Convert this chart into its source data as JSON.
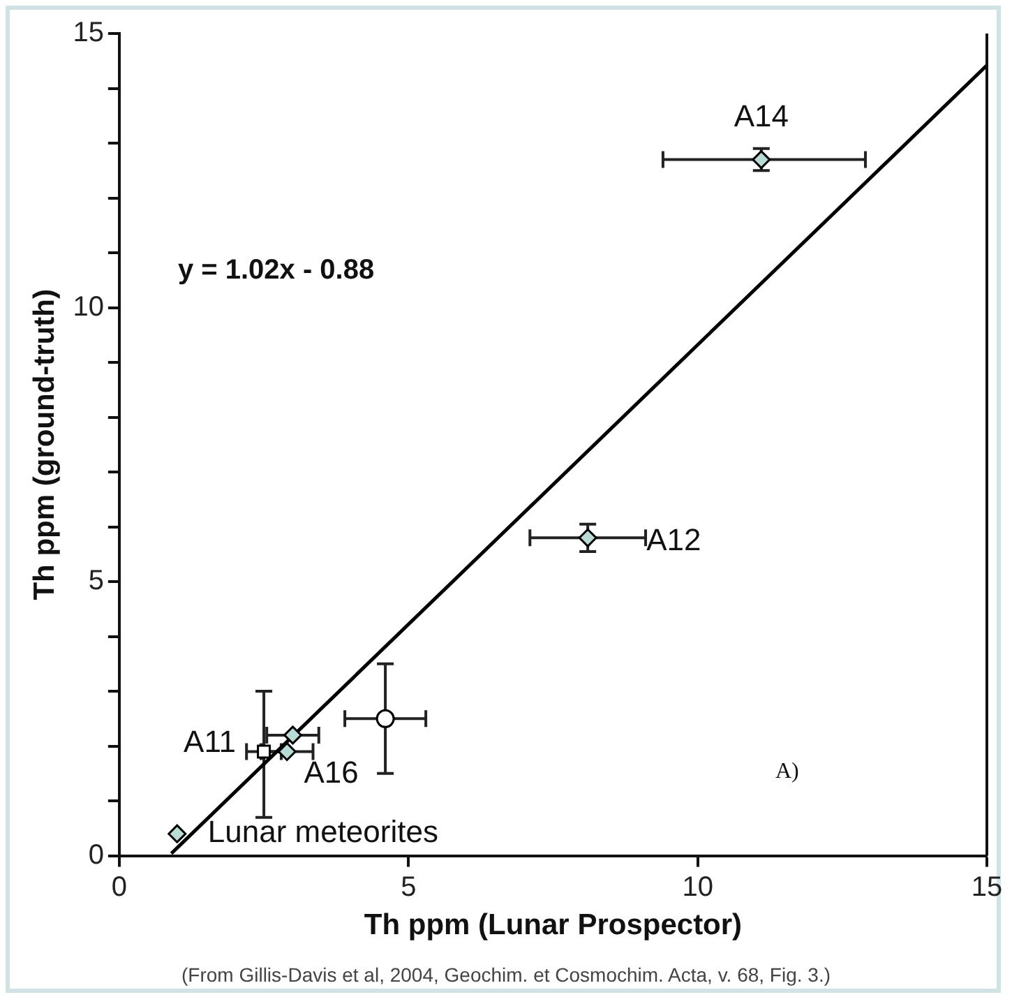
{
  "chart_data": {
    "type": "scatter",
    "xlabel": "Th ppm (Lunar Prospector)",
    "ylabel": "Th ppm (ground-truth)",
    "xlim": [
      0,
      15
    ],
    "ylim": [
      0,
      15
    ],
    "xticks": [
      0,
      5,
      10,
      15
    ],
    "yticks": [
      0,
      {
        "value": 1,
        "label": null
      },
      {
        "value": 2,
        "label": null
      },
      {
        "value": 3,
        "label": null
      },
      {
        "value": 4,
        "label": null
      },
      5,
      {
        "value": 6,
        "label": null
      },
      {
        "value": 7,
        "label": null
      },
      {
        "value": 8,
        "label": null
      },
      {
        "value": 9,
        "label": null
      },
      10,
      {
        "value": 11,
        "label": null
      },
      {
        "value": 12,
        "label": null
      },
      {
        "value": 13,
        "label": null
      },
      {
        "value": 14,
        "label": null
      },
      15
    ],
    "grid": false,
    "legend": false,
    "series": [
      {
        "name": "Lunar meteorites",
        "type": "scatter",
        "marker": "diamond",
        "color": "#b7dcd6",
        "x": [
          1.0
        ],
        "values": [
          0.4
        ]
      },
      {
        "name": "A11",
        "type": "scatter",
        "marker": "square",
        "color": "#ffffff",
        "x": [
          2.5
        ],
        "values": [
          1.9
        ],
        "errors": [
          [
            0.7,
            3.0
          ]
        ],
        "xerrors": [
          0.3
        ]
      },
      {
        "name": "A16",
        "type": "scatter",
        "marker": "diamond",
        "color": "#b7dcd6",
        "x": [
          3.0,
          2.9
        ],
        "values": [
          2.2,
          1.9
        ],
        "xerrors": [
          0.45,
          0.45
        ]
      },
      {
        "type": "scatter",
        "marker": "circle",
        "color": "#ffffff",
        "x": [
          4.6
        ],
        "values": [
          2.5
        ],
        "errors": [
          1.0
        ],
        "xerrors": [
          0.7
        ]
      },
      {
        "name": "A12",
        "type": "scatter",
        "marker": "diamond",
        "color": "#b7dcd6",
        "x": [
          8.1
        ],
        "values": [
          5.8
        ],
        "errors": [
          0.25
        ],
        "xerrors": [
          1.0
        ]
      },
      {
        "name": "A14",
        "type": "scatter",
        "marker": "diamond",
        "color": "#b7dcd6",
        "x": [
          11.1
        ],
        "values": [
          12.7
        ],
        "errors": [
          0.2
        ],
        "xerrors": [
          [
            9.4,
            12.9
          ]
        ]
      },
      {
        "type": "line",
        "marker": "none",
        "line_style": "solid",
        "color": "#000000",
        "x": [
          0.9,
          15
        ],
        "values": [
          0.04,
          14.42
        ]
      }
    ],
    "annotations": [
      "y = 1.02x - 0.88",
      "A)",
      "(From Gillis-Davis et al, 2004, Geochim. et Cosmochim. Acta, v. 68, Fig. 3.)"
    ]
  }
}
